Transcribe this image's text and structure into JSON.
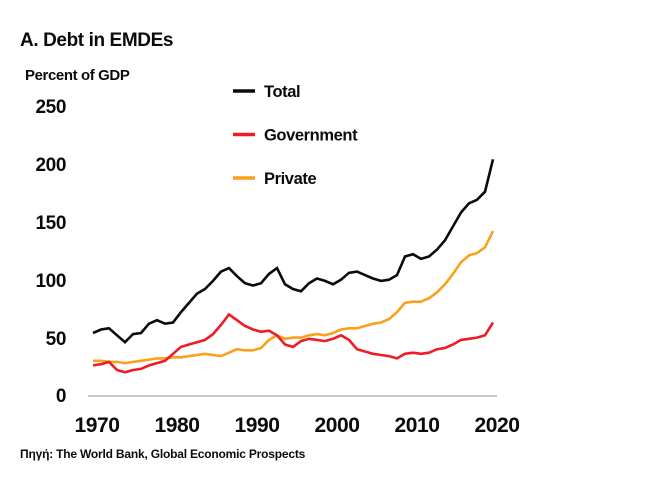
{
  "title": "A. Debt in EMDEs",
  "y_axis": {
    "label": "Percent of GDP",
    "tick_labels": [
      "250",
      "200",
      "150",
      "100",
      "50",
      "0"
    ]
  },
  "x_axis": {
    "tick_labels": [
      "1970",
      "1980",
      "1990",
      "2000",
      "2010",
      "2020"
    ]
  },
  "legend": [
    {
      "label": "Total",
      "color": "#0b0b0b"
    },
    {
      "label": "Government",
      "color": "#ee1c25"
    },
    {
      "label": "Private",
      "color": "#f9a11b"
    }
  ],
  "source": "Πηγή: The World Bank, Global Economic Prospects",
  "chart_data": {
    "type": "line",
    "title": "A. Debt in EMDEs",
    "xlabel": "",
    "ylabel": "Percent of GDP",
    "ylim": [
      0,
      250
    ],
    "xlim": [
      1970,
      2020
    ],
    "grid": false,
    "legend_position": "top-center-inside",
    "x": [
      1970,
      1971,
      1972,
      1973,
      1974,
      1975,
      1976,
      1977,
      1978,
      1979,
      1980,
      1981,
      1982,
      1983,
      1984,
      1985,
      1986,
      1987,
      1988,
      1989,
      1990,
      1991,
      1992,
      1993,
      1994,
      1995,
      1996,
      1997,
      1998,
      1999,
      2000,
      2001,
      2002,
      2003,
      2004,
      2005,
      2006,
      2007,
      2008,
      2009,
      2010,
      2011,
      2012,
      2013,
      2014,
      2015,
      2016,
      2017,
      2018,
      2019,
      2020
    ],
    "series": [
      {
        "name": "Total",
        "color": "#0b0b0b",
        "values": [
          54,
          57,
          58,
          52,
          46,
          53,
          54,
          62,
          65,
          62,
          63,
          72,
          80,
          88,
          92,
          99,
          107,
          110,
          103,
          97,
          95,
          97,
          105,
          110,
          96,
          92,
          90,
          97,
          101,
          99,
          96,
          100,
          106,
          107,
          104,
          101,
          99,
          100,
          104,
          120,
          122,
          118,
          120,
          126,
          134,
          146,
          158,
          166,
          169,
          176,
          204
        ]
      },
      {
        "name": "Government",
        "color": "#ee1c25",
        "values": [
          26,
          27,
          29,
          22,
          20,
          22,
          23,
          26,
          28,
          30,
          36,
          42,
          44,
          46,
          48,
          53,
          61,
          70,
          65,
          60,
          57,
          55,
          56,
          52,
          44,
          42,
          47,
          49,
          48,
          47,
          49,
          52,
          48,
          40,
          38,
          36,
          35,
          34,
          32,
          36,
          37,
          36,
          37,
          40,
          41,
          44,
          48,
          49,
          50,
          52,
          63
        ]
      },
      {
        "name": "Private",
        "color": "#f9a11b",
        "values": [
          30,
          30,
          29,
          29,
          28,
          29,
          30,
          31,
          32,
          32,
          33,
          33,
          34,
          35,
          36,
          35,
          34,
          37,
          40,
          39,
          39,
          41,
          48,
          52,
          49,
          50,
          50,
          52,
          53,
          52,
          54,
          57,
          58,
          58,
          60,
          62,
          63,
          66,
          72,
          80,
          81,
          81,
          84,
          89,
          96,
          105,
          115,
          121,
          123,
          128,
          142
        ]
      }
    ]
  }
}
